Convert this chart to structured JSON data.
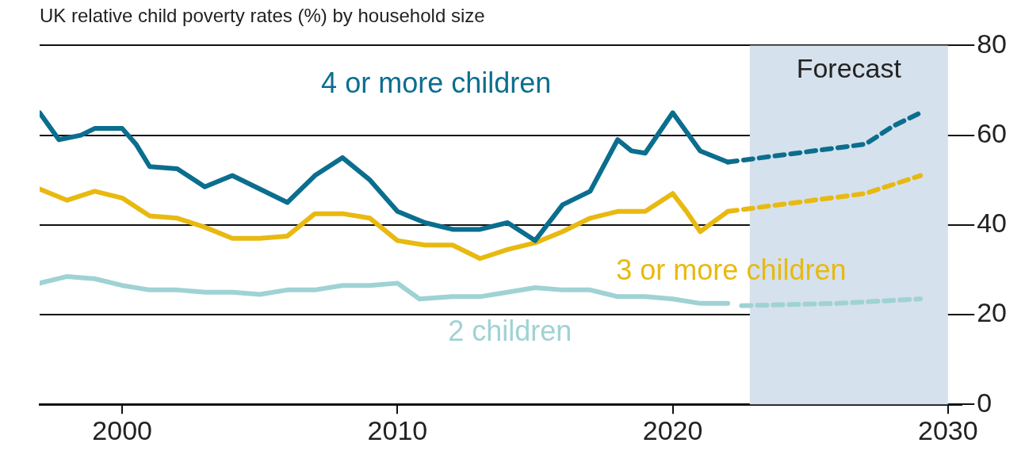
{
  "chart_data": {
    "type": "line",
    "title": "UK relative child poverty rates (%) by household size",
    "xlim": [
      1997,
      2030.5
    ],
    "xticks": [
      2000,
      2010,
      2020,
      2030
    ],
    "ylim": [
      0,
      80
    ],
    "yticks": [
      0,
      20,
      40,
      60,
      80
    ],
    "grid": "y",
    "legend": false,
    "marker": "none",
    "bands": [
      {
        "axis": "x",
        "from": 2022.8,
        "to": 2030,
        "label": "Forecast",
        "color": "#d5e1ec"
      }
    ],
    "series": [
      {
        "name": "4 or more children",
        "color": "#0b6e8e",
        "line_style": "solid",
        "x": [
          1997,
          1997.7,
          1998.5,
          1999,
          2000,
          2000.5,
          2001,
          2002,
          2003,
          2004,
          2005,
          2006,
          2007,
          2008,
          2009,
          2010,
          2011,
          2012,
          2013,
          2014,
          2015,
          2016,
          2017,
          2018,
          2018.5,
          2019,
          2020,
          2021,
          2022
        ],
        "values": [
          65,
          59,
          60,
          61.5,
          61.5,
          58,
          53,
          52.5,
          48.5,
          51,
          48,
          45,
          51,
          55,
          50,
          43,
          40.5,
          39,
          39,
          40.5,
          36.5,
          44.5,
          47.5,
          59,
          56.5,
          56,
          65,
          56.5,
          54
        ]
      },
      {
        "color": "#0b6e8e",
        "line_style": "dashed",
        "x": [
          2022,
          2027,
          2028,
          2029
        ],
        "values": [
          54,
          58,
          62,
          65
        ]
      },
      {
        "name": "3 or more children",
        "color": "#e8b910",
        "line_style": "solid",
        "x": [
          1997,
          1998,
          1999,
          2000,
          2001,
          2002,
          2003,
          2004,
          2005,
          2006,
          2007,
          2008,
          2009,
          2010,
          2011,
          2012,
          2013,
          2014,
          2015,
          2016,
          2017,
          2018,
          2019,
          2020,
          2020.5,
          2021,
          2022
        ],
        "values": [
          48,
          45.5,
          47.5,
          46,
          42,
          41.5,
          39.5,
          37,
          37,
          37.5,
          42.5,
          42.5,
          41.5,
          36.5,
          35.5,
          35.5,
          32.5,
          34.5,
          36,
          38.5,
          41.5,
          43,
          43,
          47,
          43,
          38.5,
          43
        ]
      },
      {
        "color": "#e8b910",
        "line_style": "dashed",
        "x": [
          2022,
          2027,
          2029
        ],
        "values": [
          43,
          47,
          51
        ]
      },
      {
        "name": "2 children",
        "color": "#9fd2d4",
        "line_style": "solid",
        "x": [
          1997,
          1998,
          1999,
          2000,
          2001,
          2002,
          2003,
          2004,
          2005,
          2006,
          2007,
          2008,
          2009,
          2010,
          2010.8,
          2012,
          2013,
          2014,
          2015,
          2016,
          2017,
          2018,
          2019,
          2020,
          2021,
          2022
        ],
        "values": [
          27,
          28.5,
          28,
          26.5,
          25.5,
          25.5,
          25,
          25,
          24.5,
          25.5,
          25.5,
          26.5,
          26.5,
          27,
          23.5,
          24,
          24,
          25,
          26,
          25.5,
          25.5,
          24,
          24,
          23.5,
          22.5,
          22.5
        ]
      },
      {
        "color": "#9fd2d4",
        "line_style": "dashed",
        "x": [
          2022.5,
          2026,
          2029
        ],
        "values": [
          22,
          22.5,
          23.5
        ]
      }
    ]
  }
}
